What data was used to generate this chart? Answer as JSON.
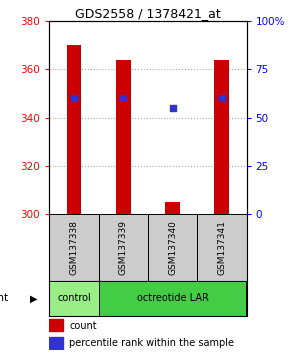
{
  "title": "GDS2558 / 1378421_at",
  "samples": [
    "GSM137338",
    "GSM137339",
    "GSM137340",
    "GSM137341"
  ],
  "bar_values": [
    370,
    364,
    305,
    364
  ],
  "bar_base": 300,
  "blue_values": [
    348,
    348,
    344,
    348
  ],
  "ylim": [
    300,
    380
  ],
  "left_yticks": [
    300,
    320,
    340,
    360,
    380
  ],
  "right_yticks_pct": [
    0,
    25,
    50,
    75,
    100
  ],
  "right_yticklabels": [
    "0",
    "25",
    "50",
    "75",
    "100%"
  ],
  "bar_color": "#cc0000",
  "blue_color": "#3333cc",
  "control_color": "#99ee88",
  "octreotide_color": "#44cc44",
  "sample_box_color": "#cccccc",
  "grid_color": "#aaaaaa",
  "bar_width": 0.3
}
